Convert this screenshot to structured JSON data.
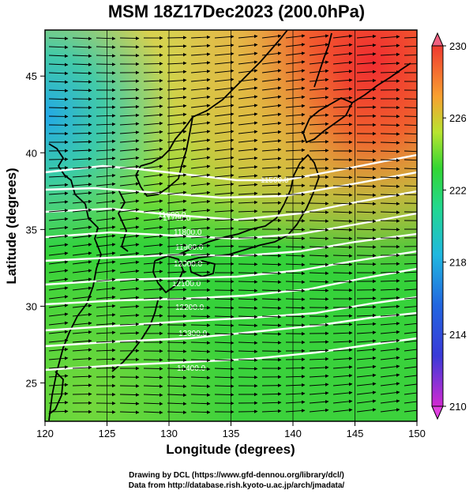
{
  "title": "MSM 18Z17Dec2023 (200.0hPa)",
  "axes": {
    "xlabel": "Longitude (degrees)",
    "ylabel": "Latitude  (degrees)",
    "xticks": [
      "120",
      "125",
      "130",
      "135",
      "140",
      "145",
      "150"
    ],
    "yticks": [
      "25",
      "30",
      "35",
      "40",
      "45"
    ]
  },
  "colorbar": {
    "min": 210,
    "max": 230,
    "ticks": [
      "230",
      "226",
      "222",
      "218",
      "214",
      "210"
    ],
    "colormap": [
      "#d22ad2",
      "#2244d6",
      "#20b0e8",
      "#22d88a",
      "#33d633",
      "#c8e830",
      "#f8a030",
      "#f04030"
    ]
  },
  "contours": {
    "color": "#ffffff",
    "labels": [
      "11500.0",
      "11600.0",
      "11700.0",
      "11800.0",
      "11900.0",
      "12000.0",
      "12100.0",
      "12200.0",
      "12300.0",
      "12400.0"
    ]
  },
  "credits": {
    "line1": "Drawing by DCL (https://www.gfd-dennou.org/library/dcl/)",
    "line2": "Data from http://database.rish.kyoto-u.ac.jp/arch/jmadata/"
  }
}
